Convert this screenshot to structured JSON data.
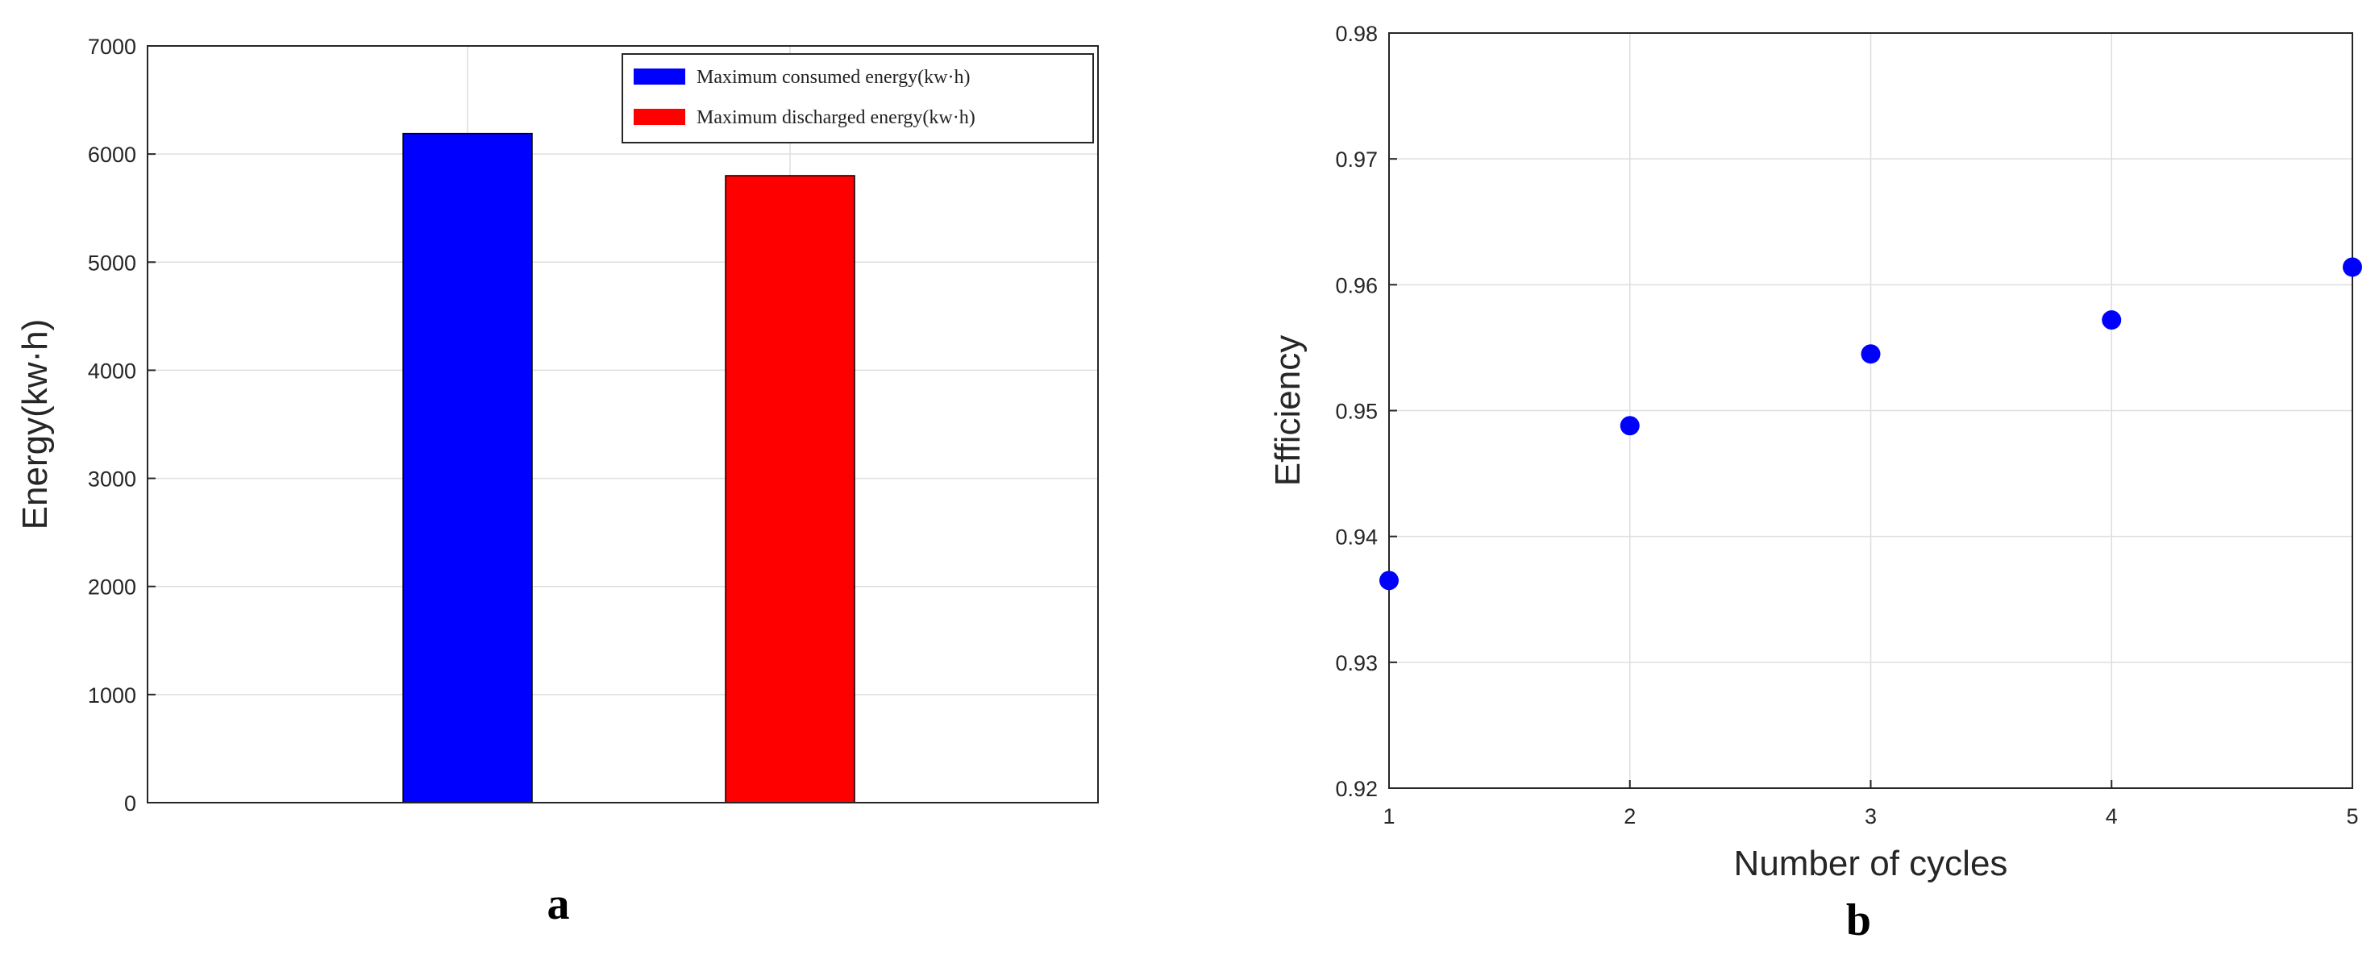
{
  "chart_data": [
    {
      "type": "bar",
      "panel_label": "a",
      "title": "",
      "xlabel": "",
      "ylabel": "Energy(kw·h)",
      "ylim": [
        0,
        7000
      ],
      "yticks": [
        0,
        1000,
        2000,
        3000,
        4000,
        5000,
        6000,
        7000
      ],
      "grid": true,
      "legend_position": "top-right",
      "series": [
        {
          "name": "Maximum consumed energy(kw·h)",
          "value": 6190,
          "color": "#0000ff"
        },
        {
          "name": "Maximum discharged energy(kw·h)",
          "value": 5800,
          "color": "#ff0000"
        }
      ]
    },
    {
      "type": "scatter",
      "panel_label": "b",
      "title": "",
      "xlabel": "Number of cycles",
      "ylabel": "Efficiency",
      "xlim": [
        1,
        5
      ],
      "ylim": [
        0.92,
        0.98
      ],
      "xticks": [
        1,
        2,
        3,
        4,
        5
      ],
      "yticks": [
        0.92,
        0.93,
        0.94,
        0.95,
        0.96,
        0.97,
        0.98
      ],
      "grid": true,
      "marker_color": "#0000ff",
      "points": [
        {
          "x": 1,
          "y": 0.9365
        },
        {
          "x": 2,
          "y": 0.9488
        },
        {
          "x": 3,
          "y": 0.9545
        },
        {
          "x": 4,
          "y": 0.9572
        },
        {
          "x": 5,
          "y": 0.9614
        }
      ]
    }
  ]
}
